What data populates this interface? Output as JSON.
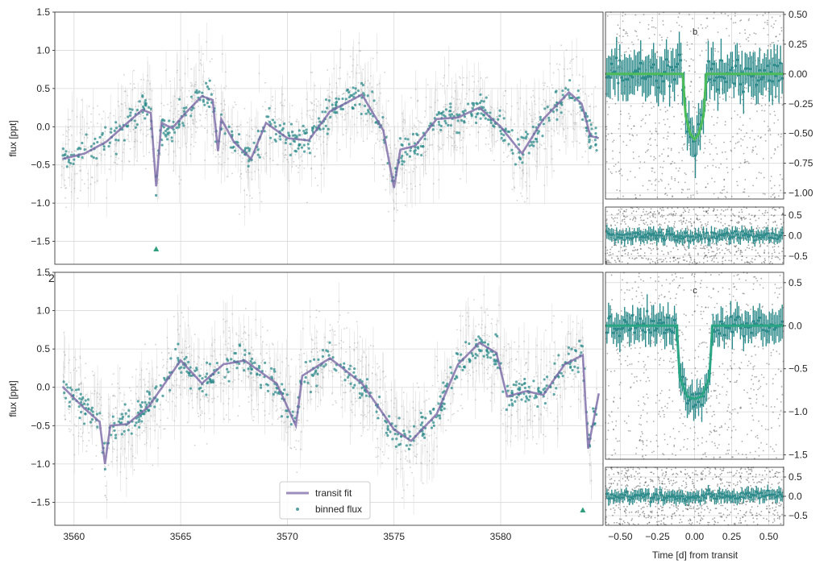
{
  "figure": {
    "top_left": {
      "ylabel": "flux [ppt]",
      "xlim": [
        3559.1,
        3584.8
      ],
      "ylim": [
        -1.8,
        1.5
      ],
      "yticks": [
        "−1.5",
        "−1.0",
        "−0.5",
        "0.0",
        "0.5",
        "1.0",
        "1.5"
      ],
      "ytick_values": [
        -1.5,
        -1.0,
        -0.5,
        0.0,
        0.5,
        1.0,
        1.5
      ],
      "stray_label": "2"
    },
    "bottom_left": {
      "ylabel": "flux [ppt]",
      "xlim": [
        3559.1,
        3584.8
      ],
      "ylim": [
        -1.8,
        1.5
      ],
      "yticks": [
        "−1.5",
        "−1.0",
        "−0.5",
        "0.0",
        "0.5",
        "1.0",
        "1.5"
      ],
      "ytick_values": [
        -1.5,
        -1.0,
        -0.5,
        0.0,
        0.5,
        1.0,
        1.5
      ],
      "xticks": [
        "3560",
        "3565",
        "3570",
        "3575",
        "3580"
      ],
      "xtick_values": [
        3560,
        3565,
        3570,
        3575,
        3580
      ]
    },
    "legend": {
      "items": [
        "transit fit",
        "binned flux"
      ]
    },
    "fold_b": {
      "tag": "b",
      "ylim": [
        -1.05,
        0.52
      ],
      "yticks": [
        "0.50",
        "0.25",
        "0.00",
        "−0.25",
        "−0.50",
        "−0.75",
        "−1.00"
      ],
      "ytick_values": [
        0.5,
        0.25,
        0.0,
        -0.25,
        -0.5,
        -0.75,
        -1.0
      ],
      "depth": 0.55
    },
    "resid_b": {
      "ylim": [
        -0.7,
        0.7
      ],
      "yticks": [
        "0.5",
        "0.0",
        "−0.5"
      ],
      "ytick_values": [
        0.5,
        0.0,
        -0.5
      ]
    },
    "fold_c": {
      "tag": "c",
      "ylim": [
        -1.55,
        0.62
      ],
      "yticks": [
        "0.5",
        "0.0",
        "−0.5",
        "−1.0",
        "−1.5"
      ],
      "ytick_values": [
        0.5,
        0.0,
        -0.5,
        -1.0,
        -1.5
      ],
      "depth": 0.85
    },
    "resid_c": {
      "ylim": [
        -0.75,
        0.75
      ],
      "yticks": [
        "0.5",
        "0.0",
        "−0.5"
      ],
      "ytick_values": [
        0.5,
        0.0,
        -0.5
      ],
      "xticks": [
        "−0.50",
        "−0.25",
        "0.00",
        "0.25",
        "0.50"
      ],
      "xtick_values": [
        -0.5,
        -0.25,
        0.0,
        0.25,
        0.5
      ],
      "xlabel": "Time [d] from transit"
    },
    "fold_xlim": [
      -0.6,
      0.6
    ]
  },
  "chart_data": [
    {
      "type": "line",
      "xlabel": "",
      "ylabel": "flux [ppt]",
      "xlim": [
        3559.1,
        3584.8
      ],
      "ylim": [
        -1.8,
        1.5
      ],
      "grid": true,
      "series": [
        {
          "name": "transit fit",
          "color": "#7b68a6",
          "x": [
            3559.5,
            3560.5,
            3561.5,
            3562.5,
            3563.2,
            3563.6,
            3563.85,
            3564.1,
            3564.6,
            3565.3,
            3566.0,
            3566.5,
            3566.75,
            3566.9,
            3567.5,
            3568.3,
            3569.0,
            3570.0,
            3571.0,
            3572.0,
            3573.5,
            3574.5,
            3575.0,
            3575.3,
            3576.0,
            3577.0,
            3578.0,
            3579.0,
            3580.0,
            3581.0,
            3582.0,
            3583.2,
            3583.8,
            3584.2,
            3584.6
          ],
          "y": [
            -0.42,
            -0.35,
            -0.2,
            0.05,
            0.22,
            0.18,
            -0.78,
            0.05,
            -0.02,
            0.2,
            0.4,
            0.35,
            -0.32,
            0.1,
            -0.2,
            -0.42,
            0.05,
            -0.15,
            -0.18,
            0.2,
            0.42,
            -0.05,
            -0.8,
            -0.3,
            -0.25,
            0.1,
            0.12,
            0.25,
            0.0,
            -0.35,
            0.1,
            0.45,
            0.3,
            -0.12,
            -0.15
          ]
        },
        {
          "name": "transit marker",
          "color": "#2e9e7e",
          "x": [
            3563.85
          ],
          "y": [
            -1.6
          ]
        }
      ]
    },
    {
      "type": "line",
      "xlabel": "",
      "ylabel": "flux [ppt]",
      "xlim": [
        3559.1,
        3584.8
      ],
      "ylim": [
        -1.8,
        1.5
      ],
      "grid": true,
      "legend": "lower-center",
      "series": [
        {
          "name": "transit fit",
          "color": "#7b68a6",
          "x": [
            3559.5,
            3560.5,
            3561.2,
            3561.45,
            3561.7,
            3562.5,
            3563.5,
            3565.0,
            3566.0,
            3567.0,
            3568.0,
            3569.5,
            3570.4,
            3570.7,
            3572.0,
            3573.5,
            3575.0,
            3575.8,
            3577.0,
            3578.0,
            3579.0,
            3579.8,
            3580.3,
            3581.2,
            3582.0,
            3583.0,
            3583.85,
            3584.1,
            3584.6
          ],
          "y": [
            0.0,
            -0.28,
            -0.45,
            -1.0,
            -0.5,
            -0.48,
            -0.25,
            0.35,
            0.05,
            0.3,
            0.35,
            0.05,
            -0.5,
            0.15,
            0.38,
            0.05,
            -0.55,
            -0.7,
            -0.35,
            0.3,
            0.58,
            0.45,
            -0.12,
            -0.05,
            -0.1,
            0.3,
            0.42,
            -0.8,
            -0.08
          ]
        },
        {
          "name": "transit marker",
          "color": "#2e9e7e",
          "x": [
            3583.85
          ],
          "y": [
            -1.6
          ]
        }
      ]
    },
    {
      "type": "scatter",
      "title": "b",
      "xlim": [
        -0.6,
        0.6
      ],
      "ylim": [
        -1.05,
        0.52
      ],
      "grid": true,
      "series": [
        {
          "name": "transit model b",
          "color": "#4cbb5a",
          "x": [
            -0.6,
            -0.08,
            -0.06,
            -0.03,
            0.0,
            0.03,
            0.06,
            0.08,
            0.6
          ],
          "y": [
            0.0,
            0.0,
            -0.35,
            -0.5,
            -0.55,
            -0.5,
            -0.35,
            0.0,
            0.0
          ]
        }
      ]
    },
    {
      "type": "scatter",
      "xlim": [
        -0.6,
        0.6
      ],
      "ylim": [
        -0.7,
        0.7
      ],
      "grid": true,
      "series": [
        {
          "name": "residuals b",
          "color": "#2e8b8b",
          "x": [
            -0.6,
            0.6
          ],
          "y": [
            0.0,
            0.0
          ]
        }
      ]
    },
    {
      "type": "scatter",
      "title": "c",
      "xlim": [
        -0.6,
        0.6
      ],
      "ylim": [
        -1.55,
        0.62
      ],
      "grid": true,
      "series": [
        {
          "name": "transit model c",
          "color": "#2aa584",
          "x": [
            -0.6,
            -0.12,
            -0.1,
            -0.05,
            0.0,
            0.05,
            0.1,
            0.12,
            0.6
          ],
          "y": [
            0.0,
            0.0,
            -0.6,
            -0.82,
            -0.85,
            -0.82,
            -0.6,
            0.0,
            0.0
          ]
        }
      ]
    },
    {
      "type": "scatter",
      "xlabel": "Time [d] from transit",
      "xlim": [
        -0.6,
        0.6
      ],
      "ylim": [
        -0.75,
        0.75
      ],
      "grid": true,
      "series": [
        {
          "name": "residuals c",
          "color": "#2e8b8b",
          "x": [
            -0.6,
            0.6
          ],
          "y": [
            0.0,
            0.0
          ]
        }
      ]
    }
  ]
}
